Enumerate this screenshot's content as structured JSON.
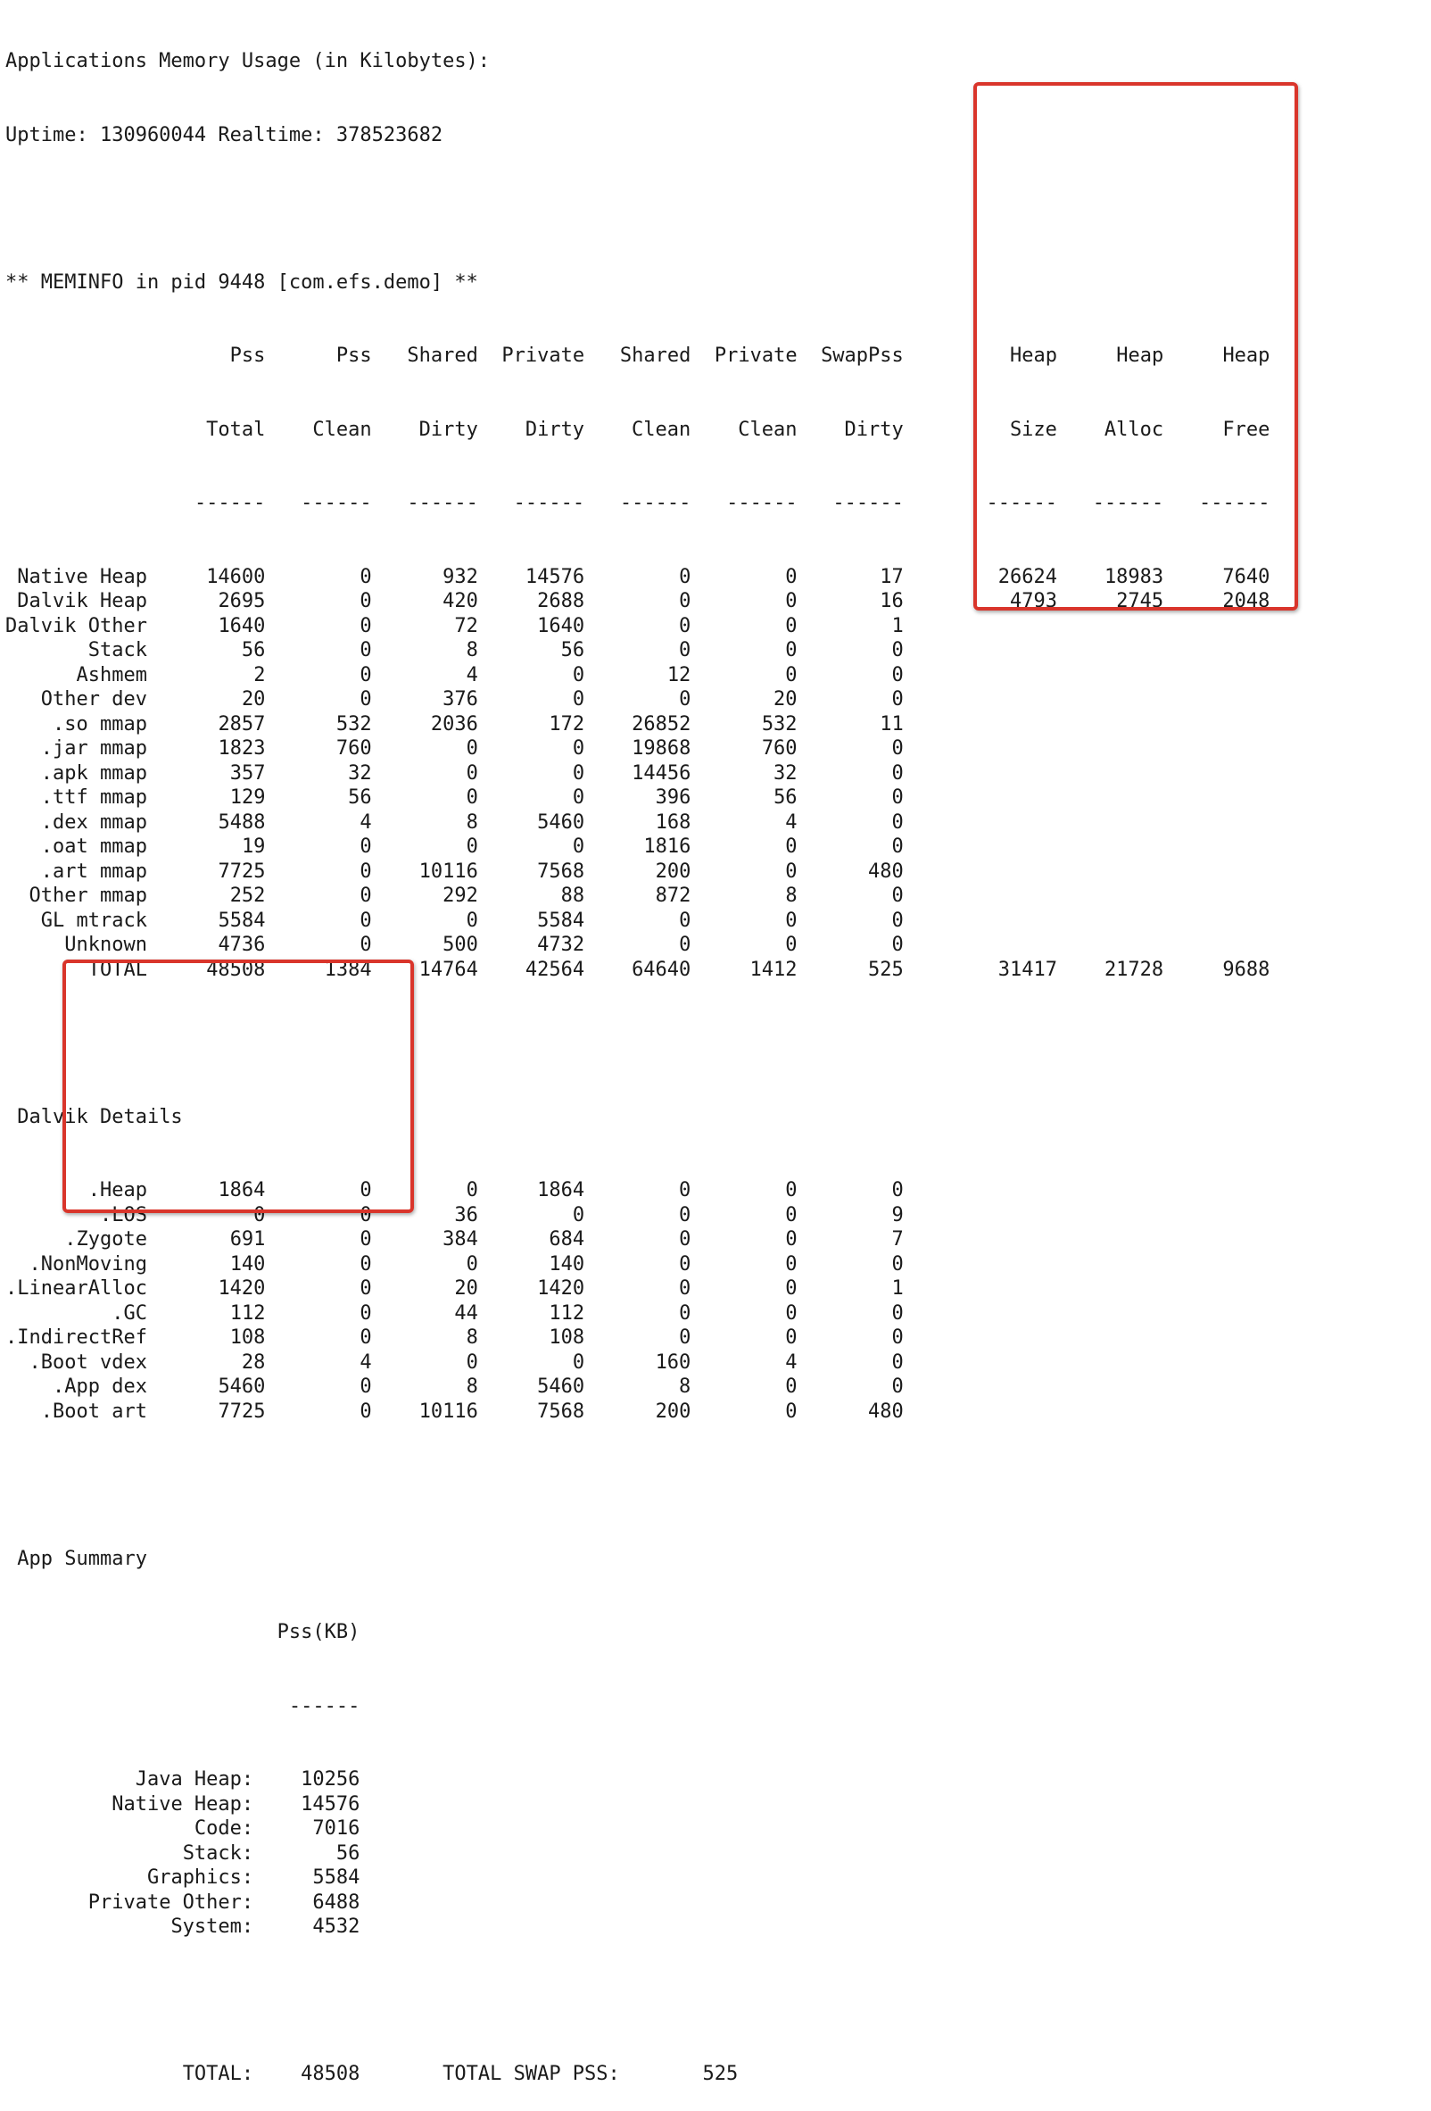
{
  "title": "Applications Memory Usage (in Kilobytes):",
  "uptime_line": "Uptime: 130960044 Realtime: 378523682",
  "meminfo_header": "** MEMINFO in pid 9448 [com.efs.demo] **",
  "columns": {
    "top": [
      "Pss",
      "Pss",
      "Shared",
      "Private",
      "Shared",
      "Private",
      "SwapPss",
      "Heap",
      "Heap",
      "Heap"
    ],
    "bottom": [
      "Total",
      "Clean",
      "Dirty",
      "Dirty",
      "Clean",
      "Clean",
      "Dirty",
      "Size",
      "Alloc",
      "Free"
    ]
  },
  "meminfo_rows": [
    {
      "name": "Native Heap",
      "values": [
        "14600",
        "0",
        "932",
        "14576",
        "0",
        "0",
        "17",
        "26624",
        "18983",
        "7640"
      ]
    },
    {
      "name": "Dalvik Heap",
      "values": [
        "2695",
        "0",
        "420",
        "2688",
        "0",
        "0",
        "16",
        "4793",
        "2745",
        "2048"
      ]
    },
    {
      "name": "Dalvik Other",
      "values": [
        "1640",
        "0",
        "72",
        "1640",
        "0",
        "0",
        "1"
      ]
    },
    {
      "name": "Stack",
      "values": [
        "56",
        "0",
        "8",
        "56",
        "0",
        "0",
        "0"
      ]
    },
    {
      "name": "Ashmem",
      "values": [
        "2",
        "0",
        "4",
        "0",
        "12",
        "0",
        "0"
      ]
    },
    {
      "name": "Other dev",
      "values": [
        "20",
        "0",
        "376",
        "0",
        "0",
        "20",
        "0"
      ]
    },
    {
      "name": ".so mmap",
      "values": [
        "2857",
        "532",
        "2036",
        "172",
        "26852",
        "532",
        "11"
      ]
    },
    {
      "name": ".jar mmap",
      "values": [
        "1823",
        "760",
        "0",
        "0",
        "19868",
        "760",
        "0"
      ]
    },
    {
      "name": ".apk mmap",
      "values": [
        "357",
        "32",
        "0",
        "0",
        "14456",
        "32",
        "0"
      ]
    },
    {
      "name": ".ttf mmap",
      "values": [
        "129",
        "56",
        "0",
        "0",
        "396",
        "56",
        "0"
      ]
    },
    {
      "name": ".dex mmap",
      "values": [
        "5488",
        "4",
        "8",
        "5460",
        "168",
        "4",
        "0"
      ]
    },
    {
      "name": ".oat mmap",
      "values": [
        "19",
        "0",
        "0",
        "0",
        "1816",
        "0",
        "0"
      ]
    },
    {
      "name": ".art mmap",
      "values": [
        "7725",
        "0",
        "10116",
        "7568",
        "200",
        "0",
        "480"
      ]
    },
    {
      "name": "Other mmap",
      "values": [
        "252",
        "0",
        "292",
        "88",
        "872",
        "8",
        "0"
      ]
    },
    {
      "name": "GL mtrack",
      "values": [
        "5584",
        "0",
        "0",
        "5584",
        "0",
        "0",
        "0"
      ]
    },
    {
      "name": "Unknown",
      "values": [
        "4736",
        "0",
        "500",
        "4732",
        "0",
        "0",
        "0"
      ]
    },
    {
      "name": "TOTAL",
      "values": [
        "48508",
        "1384",
        "14764",
        "42564",
        "64640",
        "1412",
        "525",
        "31417",
        "21728",
        "9688"
      ]
    }
  ],
  "dalvik_title": "Dalvik Details",
  "dalvik_rows": [
    {
      "name": ".Heap",
      "values": [
        "1864",
        "0",
        "0",
        "1864",
        "0",
        "0",
        "0"
      ]
    },
    {
      "name": ".LOS",
      "values": [
        "0",
        "0",
        "36",
        "0",
        "0",
        "0",
        "9"
      ]
    },
    {
      "name": ".Zygote",
      "values": [
        "691",
        "0",
        "384",
        "684",
        "0",
        "0",
        "7"
      ]
    },
    {
      "name": ".NonMoving",
      "values": [
        "140",
        "0",
        "0",
        "140",
        "0",
        "0",
        "0"
      ]
    },
    {
      "name": ".LinearAlloc",
      "values": [
        "1420",
        "0",
        "20",
        "1420",
        "0",
        "0",
        "1"
      ]
    },
    {
      "name": ".GC",
      "values": [
        "112",
        "0",
        "44",
        "112",
        "0",
        "0",
        "0"
      ]
    },
    {
      "name": ".IndirectRef",
      "values": [
        "108",
        "0",
        "8",
        "108",
        "0",
        "0",
        "0"
      ]
    },
    {
      "name": ".Boot vdex",
      "values": [
        "28",
        "4",
        "0",
        "0",
        "160",
        "4",
        "0"
      ]
    },
    {
      "name": ".App dex",
      "values": [
        "5460",
        "0",
        "8",
        "5460",
        "8",
        "0",
        "0"
      ]
    },
    {
      "name": ".Boot art",
      "values": [
        "7725",
        "0",
        "10116",
        "7568",
        "200",
        "0",
        "480"
      ]
    }
  ],
  "summary_title": "App Summary",
  "summary_column": "Pss(KB)",
  "summary_rows": [
    {
      "label": "Java Heap:",
      "value": "10256"
    },
    {
      "label": "Native Heap:",
      "value": "14576"
    },
    {
      "label": "Code:",
      "value": "7016"
    },
    {
      "label": "Stack:",
      "value": "56"
    },
    {
      "label": "Graphics:",
      "value": "5584"
    },
    {
      "label": "Private Other:",
      "value": "6488"
    },
    {
      "label": "System:",
      "value": "4532"
    }
  ],
  "summary_total": {
    "label": "TOTAL:",
    "value": "48508"
  },
  "swap_total": {
    "label": "TOTAL SWAP PSS:",
    "value": "525"
  },
  "dash": "------",
  "colors": {
    "highlight_box": "#d9352b",
    "text": "#1a1a1a",
    "background": "#ffffff"
  }
}
